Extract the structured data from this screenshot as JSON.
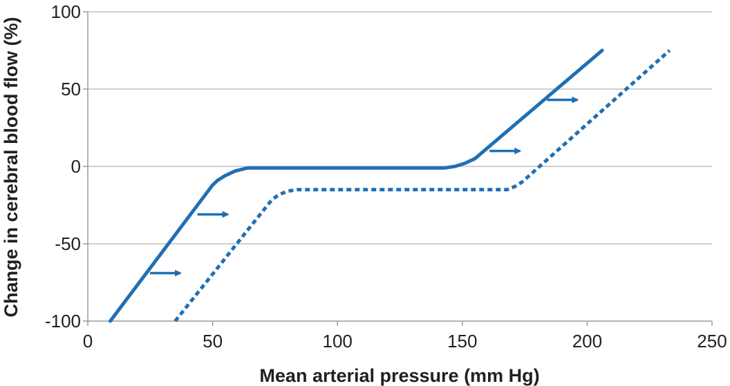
{
  "chart_data": {
    "type": "line",
    "xlabel": "Mean arterial pressure (mm Hg)",
    "ylabel": "Change in cerebral blood flow (%)",
    "xlim": [
      0,
      250
    ],
    "ylim": [
      -100,
      100
    ],
    "xticks": [
      0,
      50,
      100,
      150,
      200,
      250
    ],
    "yticks": [
      -100,
      -50,
      0,
      50,
      100
    ],
    "xtick_labels": [
      "0",
      "50",
      "100",
      "150",
      "200",
      "250"
    ],
    "ytick_labels": [
      "-100",
      "-50",
      "0",
      "50",
      "100"
    ],
    "grid": "horizontal",
    "line_color": "#1f6fb4",
    "grid_color": "#bfbfbf",
    "series": [
      {
        "style": "solid",
        "x": [
          9,
          50,
          52,
          55,
          59,
          64,
          100,
          143,
          147,
          151,
          155,
          206
        ],
        "y": [
          -100,
          -12,
          -9,
          -6,
          -3,
          -1,
          -1,
          -1,
          0,
          2,
          5,
          75
        ]
      },
      {
        "style": "dashed",
        "x": [
          35,
          73,
          75,
          77,
          80,
          84,
          120,
          165,
          168,
          171,
          174,
          233
        ],
        "y": [
          -100,
          -23,
          -20,
          -18,
          -16,
          -15,
          -15,
          -15,
          -15,
          -13,
          -10,
          75
        ]
      }
    ],
    "arrows": [
      {
        "x": 31,
        "y": -69
      },
      {
        "x": 50,
        "y": -31
      },
      {
        "x": 167,
        "y": 10
      },
      {
        "x": 190,
        "y": 43
      }
    ]
  }
}
